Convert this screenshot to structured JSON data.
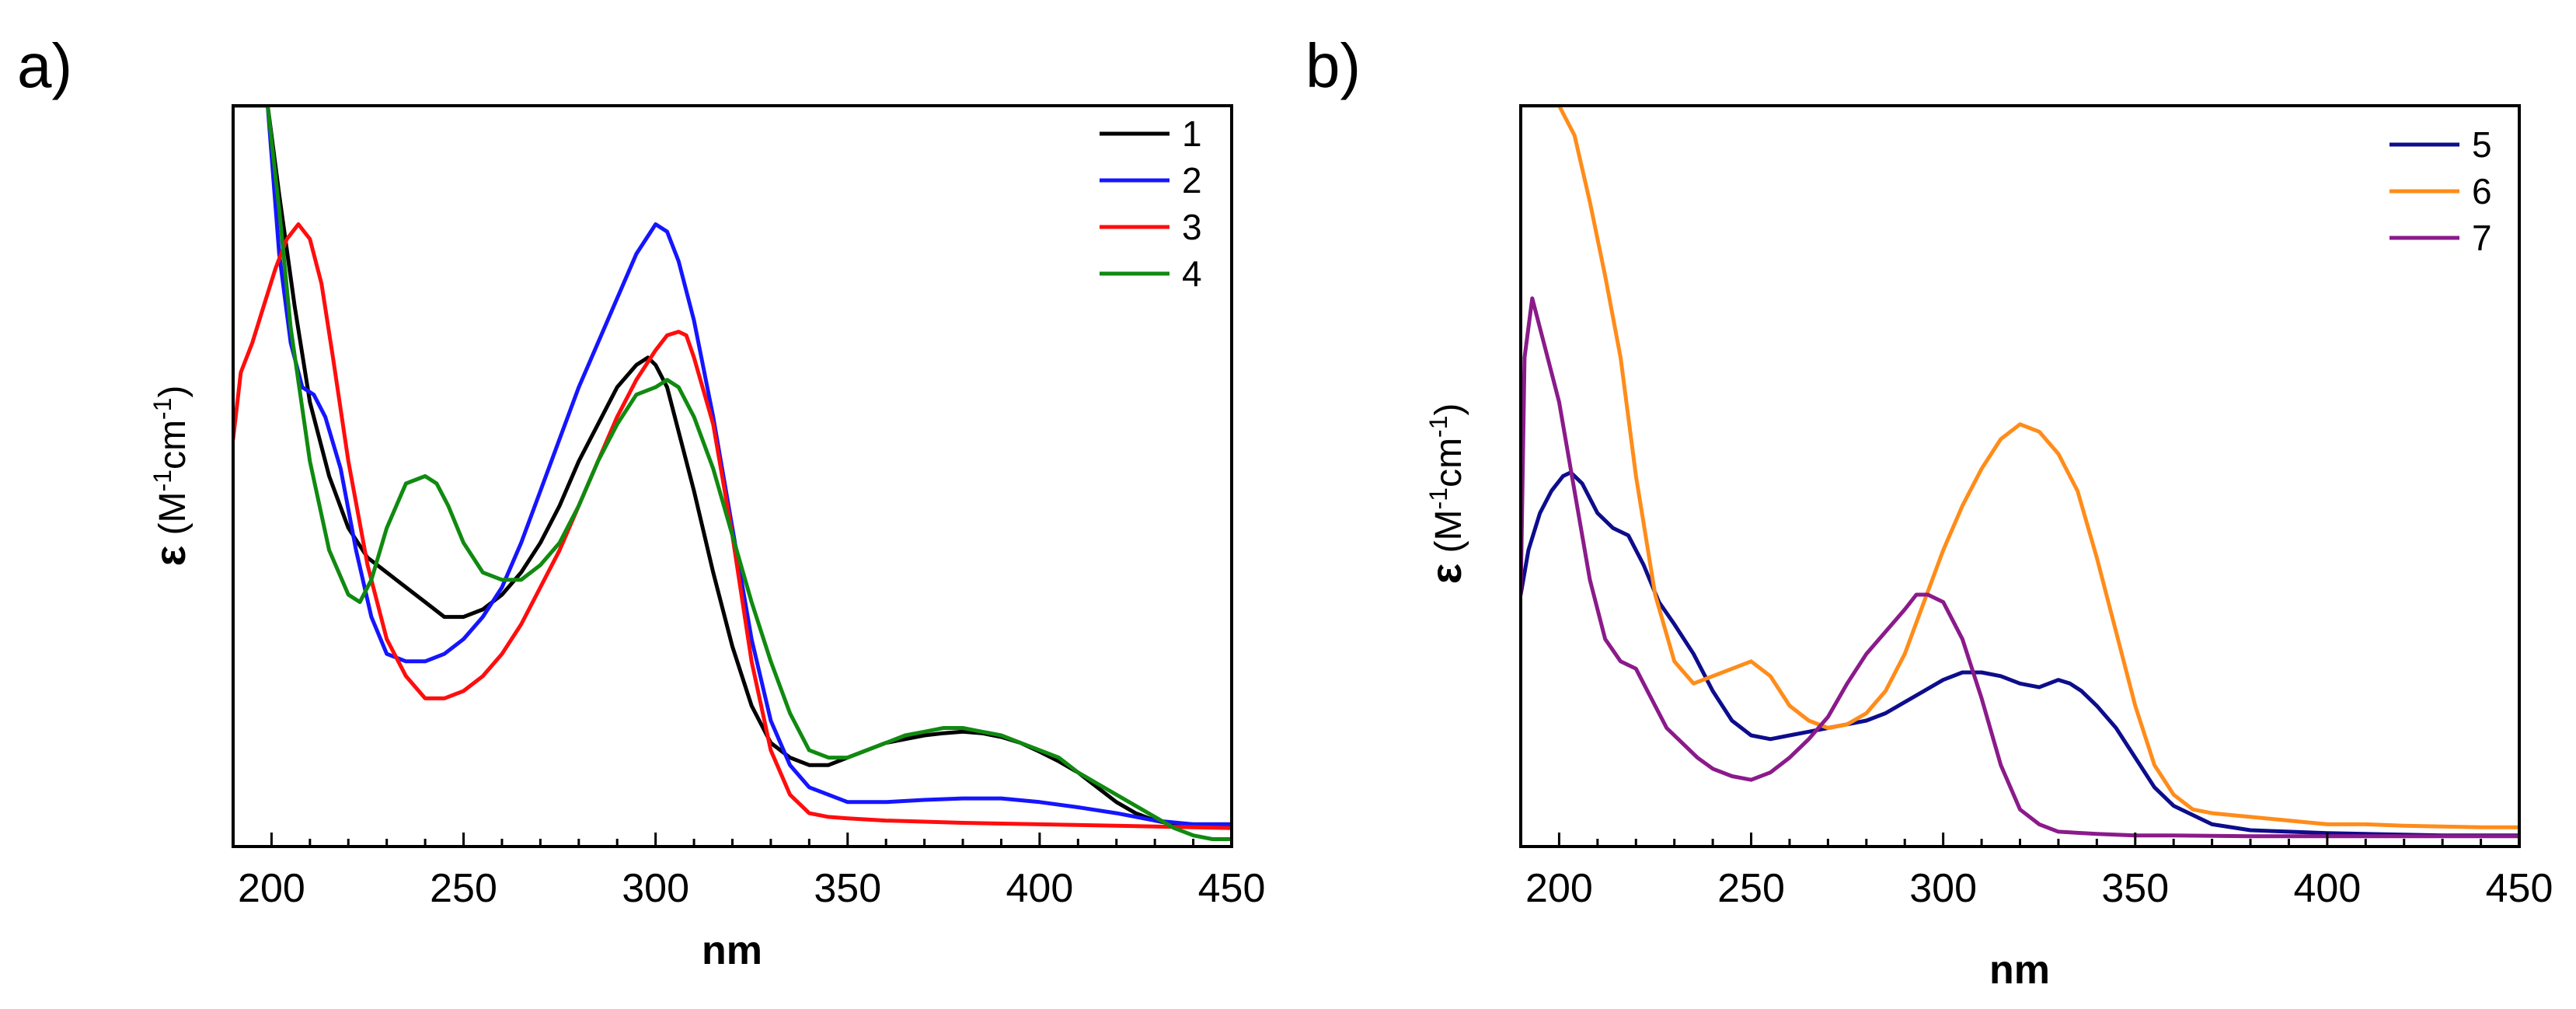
{
  "chart_data": [
    {
      "panel_label": "a)",
      "type": "line",
      "xlabel": "nm",
      "ylabel": {
        "symbol": "ε",
        "open": "(M",
        "exp1": "-1",
        "mid": "cm",
        "exp2": "-1",
        "close": ")"
      },
      "xlim": [
        190,
        450
      ],
      "ylim": [
        0,
        100
      ],
      "xticks": [
        200,
        250,
        300,
        350,
        400,
        450
      ],
      "yticks_shown": false,
      "legend_position": "top-right",
      "series": [
        {
          "name": "1",
          "color": "#000000",
          "x": [
            190,
            193,
            196,
            199,
            202,
            206,
            210,
            215,
            220,
            225,
            230,
            235,
            240,
            245,
            250,
            255,
            260,
            265,
            270,
            275,
            280,
            285,
            290,
            295,
            298,
            300,
            303,
            306,
            310,
            315,
            320,
            325,
            330,
            335,
            340,
            345,
            350,
            355,
            360,
            365,
            370,
            375,
            380,
            385,
            390,
            395,
            400,
            405,
            410,
            415,
            420,
            425,
            430,
            435,
            440,
            445,
            450
          ],
          "y": [
            100,
            100,
            100,
            100,
            88,
            73,
            60,
            50,
            43,
            39,
            37,
            35,
            33,
            31,
            31,
            32,
            34,
            37,
            41,
            46,
            52,
            57,
            62,
            65,
            66,
            65,
            62,
            56,
            48,
            37,
            27,
            19,
            14,
            12,
            11,
            11,
            12,
            13,
            14,
            14.5,
            15,
            15.3,
            15.5,
            15.3,
            14.8,
            14,
            12.8,
            11.5,
            10,
            8,
            6,
            4.5,
            3.5,
            3,
            3,
            3,
            3
          ]
        },
        {
          "name": "2",
          "color": "#1515ff",
          "x": [
            190,
            193,
            196,
            199,
            202,
            205,
            208,
            211,
            214,
            218,
            222,
            226,
            230,
            235,
            240,
            245,
            250,
            255,
            260,
            265,
            270,
            275,
            280,
            285,
            290,
            295,
            300,
            303,
            306,
            310,
            315,
            320,
            325,
            330,
            335,
            340,
            345,
            350,
            360,
            370,
            380,
            390,
            400,
            410,
            420,
            430,
            440,
            450
          ],
          "y": [
            100,
            100,
            100,
            100,
            80,
            68,
            62,
            61,
            58,
            51,
            40,
            31,
            26,
            25,
            25,
            26,
            28,
            31,
            35,
            41,
            48,
            55,
            62,
            68,
            74,
            80,
            84,
            83,
            79,
            71,
            58,
            43,
            28,
            17,
            11,
            8,
            7,
            6,
            6,
            6.3,
            6.5,
            6.5,
            6,
            5.3,
            4.5,
            3.5,
            3,
            3
          ]
        },
        {
          "name": "3",
          "color": "#ff0d0d",
          "x": [
            190,
            192,
            195,
            198,
            201,
            204,
            207,
            210,
            213,
            216,
            220,
            225,
            230,
            235,
            240,
            245,
            250,
            255,
            260,
            265,
            270,
            275,
            280,
            285,
            290,
            295,
            300,
            303,
            306,
            308,
            310,
            315,
            320,
            325,
            330,
            335,
            340,
            345,
            350,
            360,
            380,
            400,
            420,
            440,
            450
          ],
          "y": [
            55,
            64,
            68,
            73,
            78,
            82,
            84,
            82,
            76,
            66,
            52,
            38,
            28,
            23,
            20,
            20,
            21,
            23,
            26,
            30,
            35,
            40,
            46,
            52,
            58,
            63,
            67,
            69,
            69.5,
            69,
            66,
            57,
            42,
            25,
            13,
            7,
            4.5,
            4,
            3.8,
            3.5,
            3.2,
            3,
            2.8,
            2.6,
            2.5
          ]
        },
        {
          "name": "4",
          "color": "#108a10",
          "x": [
            190,
            193,
            196,
            199,
            202,
            205,
            210,
            215,
            220,
            223,
            226,
            230,
            235,
            240,
            243,
            246,
            250,
            255,
            260,
            265,
            270,
            275,
            280,
            285,
            290,
            295,
            300,
            303,
            306,
            310,
            315,
            320,
            325,
            330,
            335,
            340,
            345,
            350,
            355,
            360,
            365,
            370,
            375,
            380,
            385,
            390,
            395,
            400,
            405,
            410,
            415,
            420,
            425,
            430,
            435,
            440,
            445,
            450
          ],
          "y": [
            100,
            100,
            100,
            100,
            86,
            70,
            52,
            40,
            34,
            33,
            36,
            43,
            49,
            50,
            49,
            46,
            41,
            37,
            36,
            36,
            38,
            41,
            46,
            52,
            57,
            61,
            62,
            63,
            62,
            58,
            51,
            42,
            33,
            25,
            18,
            13,
            12,
            12,
            13,
            14,
            15,
            15.5,
            16,
            16,
            15.5,
            15,
            14,
            13,
            12,
            10,
            8.5,
            7,
            5.5,
            4,
            2.5,
            1.5,
            1,
            1
          ]
        }
      ]
    },
    {
      "panel_label": "b)",
      "type": "line",
      "xlabel": "nm",
      "ylabel": {
        "symbol": "ε",
        "open": "(M",
        "exp1": "-1",
        "mid": "cm",
        "exp2": "-1",
        "close": ")"
      },
      "xlim": [
        190,
        450
      ],
      "ylim": [
        0,
        100
      ],
      "xticks": [
        200,
        250,
        300,
        350,
        400,
        450
      ],
      "yticks_shown": false,
      "legend_position": "top-right",
      "series": [
        {
          "name": "5",
          "color": "#0d0d8c",
          "x": [
            190,
            192,
            195,
            198,
            201,
            203,
            206,
            210,
            214,
            218,
            222,
            226,
            230,
            235,
            240,
            245,
            250,
            255,
            260,
            265,
            270,
            275,
            280,
            285,
            290,
            295,
            300,
            305,
            310,
            315,
            320,
            325,
            330,
            333,
            336,
            340,
            345,
            350,
            355,
            360,
            370,
            380,
            390,
            400,
            410,
            420,
            430,
            440,
            450
          ],
          "y": [
            34,
            40,
            45,
            48,
            50,
            50.5,
            49,
            45,
            43,
            42,
            38,
            33,
            30,
            26,
            21,
            17,
            15,
            14.5,
            15,
            15.5,
            16,
            16.5,
            17,
            18,
            19.5,
            21,
            22.5,
            23.5,
            23.5,
            23,
            22,
            21.5,
            22.5,
            22,
            21,
            19,
            16,
            12,
            8,
            5.5,
            3,
            2.2,
            2,
            1.8,
            1.7,
            1.6,
            1.5,
            1.5,
            1.5
          ]
        },
        {
          "name": "6",
          "color": "#ff8c1a",
          "x": [
            190,
            192,
            194,
            196,
            198,
            200,
            204,
            208,
            212,
            216,
            220,
            225,
            230,
            235,
            240,
            245,
            250,
            255,
            260,
            265,
            270,
            275,
            280,
            285,
            290,
            295,
            300,
            305,
            310,
            315,
            320,
            325,
            330,
            335,
            340,
            345,
            350,
            355,
            360,
            365,
            370,
            380,
            390,
            400,
            410,
            420,
            430,
            440,
            450
          ],
          "y": [
            100,
            100,
            100,
            100,
            100,
            100,
            96,
            87,
            77,
            66,
            50,
            34,
            25,
            22,
            23,
            24,
            25,
            23,
            19,
            17,
            16,
            16.5,
            18,
            21,
            26,
            33,
            40,
            46,
            51,
            55,
            57,
            56,
            53,
            48,
            39,
            29,
            19,
            11,
            7,
            5,
            4.5,
            4,
            3.5,
            3,
            3,
            2.8,
            2.7,
            2.6,
            2.6
          ]
        },
        {
          "name": "7",
          "color": "#8b1a8b",
          "x": [
            190,
            191,
            193,
            196,
            200,
            204,
            208,
            212,
            216,
            220,
            224,
            228,
            232,
            236,
            240,
            245,
            250,
            255,
            260,
            265,
            270,
            275,
            280,
            285,
            290,
            293,
            296,
            300,
            305,
            310,
            315,
            320,
            325,
            330,
            340,
            350,
            360,
            380,
            400,
            420,
            440,
            450
          ],
          "y": [
            34,
            66,
            74,
            68,
            60,
            48,
            36,
            28,
            25,
            24,
            20,
            16,
            14,
            12,
            10.5,
            9.5,
            9,
            10,
            12,
            14.5,
            17.5,
            22,
            26,
            29,
            32,
            34,
            34,
            33,
            28,
            20,
            11,
            5,
            3,
            2,
            1.7,
            1.5,
            1.5,
            1.4,
            1.4,
            1.4,
            1.4,
            1.4
          ]
        }
      ]
    }
  ]
}
